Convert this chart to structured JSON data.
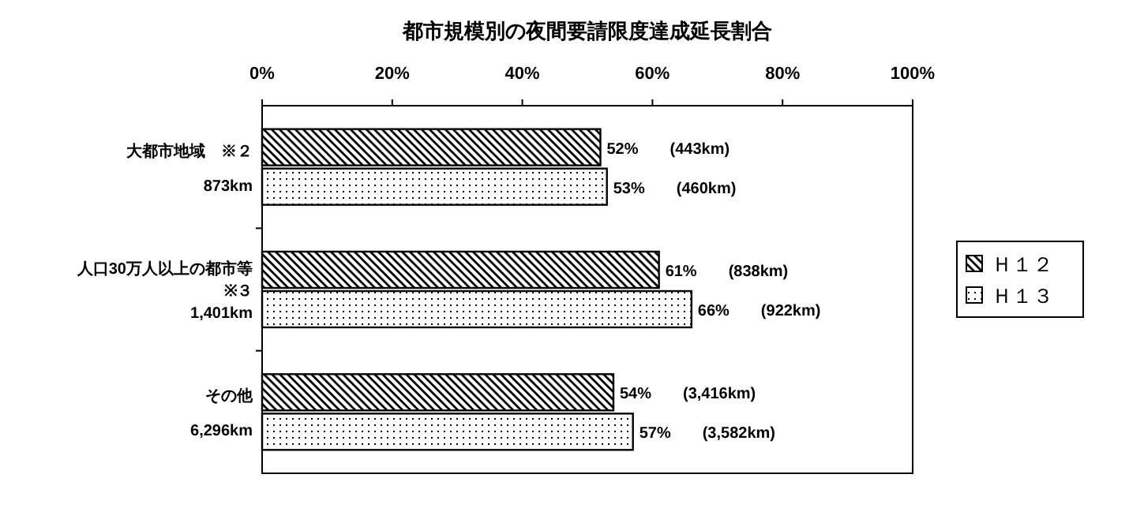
{
  "chart_data": {
    "type": "bar",
    "orientation": "horizontal",
    "title": "都市規模別の夜間要請限度達成延長割合",
    "categories": [
      "大都市地域　※２\n873km",
      "人口30万人以上の都市等\n※３\n1,401km",
      "その他\n6,296km"
    ],
    "series": [
      {
        "name": "Ｈ１２",
        "color": "#000000",
        "values": [
          52,
          61,
          54
        ],
        "value_labels": [
          "52%　　(443km)",
          "61%　　(838km)",
          "54%　　(3,416km)"
        ]
      },
      {
        "name": "Ｈ１３",
        "color": "#000000",
        "values": [
          53,
          66,
          57
        ],
        "value_labels": [
          "53%　　(460km)",
          "66%　　(922km)",
          "57%　　(3,582km)"
        ]
      }
    ],
    "xlim": [
      0,
      100
    ],
    "xticks": [
      {
        "value": 0,
        "label": "0%"
      },
      {
        "value": 20,
        "label": "20%"
      },
      {
        "value": 40,
        "label": "40%"
      },
      {
        "value": 60,
        "label": "60%"
      },
      {
        "value": 80,
        "label": "80%"
      },
      {
        "value": 100,
        "label": "100%"
      }
    ],
    "legend": "right"
  }
}
